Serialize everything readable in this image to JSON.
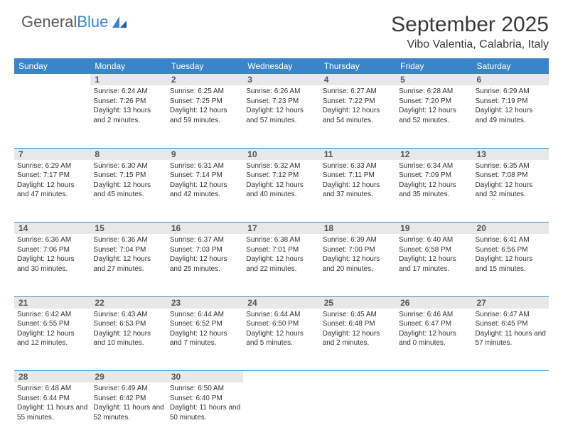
{
  "brand": {
    "part1": "General",
    "part2": "Blue"
  },
  "title": "September 2025",
  "location": "Vibo Valentia, Calabria, Italy",
  "colors": {
    "accent": "#3a85c9",
    "header_text": "#ffffff",
    "daynum_bg": "#e8e8e8",
    "text": "#333333"
  },
  "day_headers": [
    "Sunday",
    "Monday",
    "Tuesday",
    "Wednesday",
    "Thursday",
    "Friday",
    "Saturday"
  ],
  "weeks": [
    {
      "nums": [
        "",
        "1",
        "2",
        "3",
        "4",
        "5",
        "6"
      ],
      "cells": [
        null,
        {
          "sunrise": "Sunrise: 6:24 AM",
          "sunset": "Sunset: 7:26 PM",
          "daylight": "Daylight: 13 hours and 2 minutes."
        },
        {
          "sunrise": "Sunrise: 6:25 AM",
          "sunset": "Sunset: 7:25 PM",
          "daylight": "Daylight: 12 hours and 59 minutes."
        },
        {
          "sunrise": "Sunrise: 6:26 AM",
          "sunset": "Sunset: 7:23 PM",
          "daylight": "Daylight: 12 hours and 57 minutes."
        },
        {
          "sunrise": "Sunrise: 6:27 AM",
          "sunset": "Sunset: 7:22 PM",
          "daylight": "Daylight: 12 hours and 54 minutes."
        },
        {
          "sunrise": "Sunrise: 6:28 AM",
          "sunset": "Sunset: 7:20 PM",
          "daylight": "Daylight: 12 hours and 52 minutes."
        },
        {
          "sunrise": "Sunrise: 6:29 AM",
          "sunset": "Sunset: 7:19 PM",
          "daylight": "Daylight: 12 hours and 49 minutes."
        }
      ]
    },
    {
      "nums": [
        "7",
        "8",
        "9",
        "10",
        "11",
        "12",
        "13"
      ],
      "cells": [
        {
          "sunrise": "Sunrise: 6:29 AM",
          "sunset": "Sunset: 7:17 PM",
          "daylight": "Daylight: 12 hours and 47 minutes."
        },
        {
          "sunrise": "Sunrise: 6:30 AM",
          "sunset": "Sunset: 7:15 PM",
          "daylight": "Daylight: 12 hours and 45 minutes."
        },
        {
          "sunrise": "Sunrise: 6:31 AM",
          "sunset": "Sunset: 7:14 PM",
          "daylight": "Daylight: 12 hours and 42 minutes."
        },
        {
          "sunrise": "Sunrise: 6:32 AM",
          "sunset": "Sunset: 7:12 PM",
          "daylight": "Daylight: 12 hours and 40 minutes."
        },
        {
          "sunrise": "Sunrise: 6:33 AM",
          "sunset": "Sunset: 7:11 PM",
          "daylight": "Daylight: 12 hours and 37 minutes."
        },
        {
          "sunrise": "Sunrise: 6:34 AM",
          "sunset": "Sunset: 7:09 PM",
          "daylight": "Daylight: 12 hours and 35 minutes."
        },
        {
          "sunrise": "Sunrise: 6:35 AM",
          "sunset": "Sunset: 7:08 PM",
          "daylight": "Daylight: 12 hours and 32 minutes."
        }
      ]
    },
    {
      "nums": [
        "14",
        "15",
        "16",
        "17",
        "18",
        "19",
        "20"
      ],
      "cells": [
        {
          "sunrise": "Sunrise: 6:36 AM",
          "sunset": "Sunset: 7:06 PM",
          "daylight": "Daylight: 12 hours and 30 minutes."
        },
        {
          "sunrise": "Sunrise: 6:36 AM",
          "sunset": "Sunset: 7:04 PM",
          "daylight": "Daylight: 12 hours and 27 minutes."
        },
        {
          "sunrise": "Sunrise: 6:37 AM",
          "sunset": "Sunset: 7:03 PM",
          "daylight": "Daylight: 12 hours and 25 minutes."
        },
        {
          "sunrise": "Sunrise: 6:38 AM",
          "sunset": "Sunset: 7:01 PM",
          "daylight": "Daylight: 12 hours and 22 minutes."
        },
        {
          "sunrise": "Sunrise: 6:39 AM",
          "sunset": "Sunset: 7:00 PM",
          "daylight": "Daylight: 12 hours and 20 minutes."
        },
        {
          "sunrise": "Sunrise: 6:40 AM",
          "sunset": "Sunset: 6:58 PM",
          "daylight": "Daylight: 12 hours and 17 minutes."
        },
        {
          "sunrise": "Sunrise: 6:41 AM",
          "sunset": "Sunset: 6:56 PM",
          "daylight": "Daylight: 12 hours and 15 minutes."
        }
      ]
    },
    {
      "nums": [
        "21",
        "22",
        "23",
        "24",
        "25",
        "26",
        "27"
      ],
      "cells": [
        {
          "sunrise": "Sunrise: 6:42 AM",
          "sunset": "Sunset: 6:55 PM",
          "daylight": "Daylight: 12 hours and 12 minutes."
        },
        {
          "sunrise": "Sunrise: 6:43 AM",
          "sunset": "Sunset: 6:53 PM",
          "daylight": "Daylight: 12 hours and 10 minutes."
        },
        {
          "sunrise": "Sunrise: 6:44 AM",
          "sunset": "Sunset: 6:52 PM",
          "daylight": "Daylight: 12 hours and 7 minutes."
        },
        {
          "sunrise": "Sunrise: 6:44 AM",
          "sunset": "Sunset: 6:50 PM",
          "daylight": "Daylight: 12 hours and 5 minutes."
        },
        {
          "sunrise": "Sunrise: 6:45 AM",
          "sunset": "Sunset: 6:48 PM",
          "daylight": "Daylight: 12 hours and 2 minutes."
        },
        {
          "sunrise": "Sunrise: 6:46 AM",
          "sunset": "Sunset: 6:47 PM",
          "daylight": "Daylight: 12 hours and 0 minutes."
        },
        {
          "sunrise": "Sunrise: 6:47 AM",
          "sunset": "Sunset: 6:45 PM",
          "daylight": "Daylight: 11 hours and 57 minutes."
        }
      ]
    },
    {
      "nums": [
        "28",
        "29",
        "30",
        "",
        "",
        "",
        ""
      ],
      "cells": [
        {
          "sunrise": "Sunrise: 6:48 AM",
          "sunset": "Sunset: 6:44 PM",
          "daylight": "Daylight: 11 hours and 55 minutes."
        },
        {
          "sunrise": "Sunrise: 6:49 AM",
          "sunset": "Sunset: 6:42 PM",
          "daylight": "Daylight: 11 hours and 52 minutes."
        },
        {
          "sunrise": "Sunrise: 6:50 AM",
          "sunset": "Sunset: 6:40 PM",
          "daylight": "Daylight: 11 hours and 50 minutes."
        },
        null,
        null,
        null,
        null
      ]
    }
  ]
}
